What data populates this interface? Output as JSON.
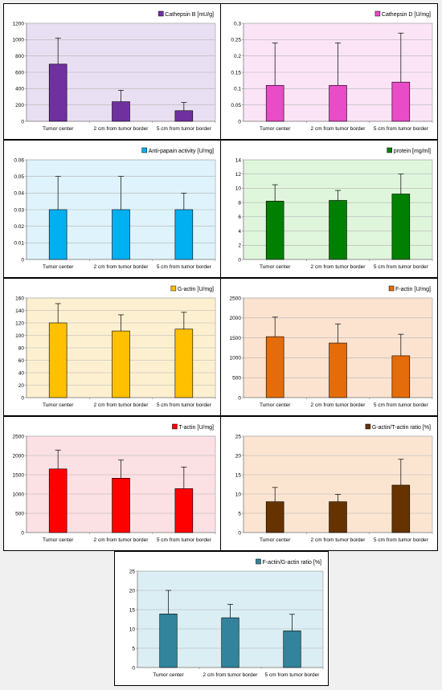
{
  "chart_data": [
    {
      "type": "bar",
      "legend": "Cathepsin B [mU/g]",
      "color": "#7030a0",
      "plot_bg": "#e9dff2",
      "categories": [
        "Tumor center",
        "2 cm from tumor border",
        "5 cm from tumor border"
      ],
      "values": [
        700,
        240,
        130
      ],
      "errors": [
        320,
        140,
        100
      ],
      "ylim": [
        0,
        1200
      ],
      "yticks": [
        "0",
        "200",
        "400",
        "600",
        "800",
        "1000",
        "1200"
      ],
      "grid": true,
      "legend_position": "top-right"
    },
    {
      "type": "bar",
      "legend": "Cathepsin D [U/mg]",
      "color": "#e84cc6",
      "plot_bg": "#fbe4f6",
      "categories": [
        "Tumor center",
        "2 cm from tumor border",
        "5 cm from tumor border"
      ],
      "values": [
        0.11,
        0.11,
        0.12
      ],
      "errors": [
        0.13,
        0.13,
        0.15
      ],
      "ylim": [
        0,
        0.3
      ],
      "yticks": [
        "0",
        "0.05",
        "0.1",
        "0.15",
        "0.2",
        "0.25",
        "0.3"
      ],
      "grid": true,
      "legend_position": "top-right"
    },
    {
      "type": "bar",
      "legend": "Anti-papain activity [U/mg]",
      "color": "#00b0f0",
      "plot_bg": "#def3fb",
      "categories": [
        "Tumor center",
        "2 cm from tumor border",
        "5 cm from tumor border"
      ],
      "values": [
        0.03,
        0.03,
        0.03
      ],
      "errors": [
        0.02,
        0.02,
        0.01
      ],
      "ylim": [
        0,
        0.06
      ],
      "yticks": [
        "0",
        "0.01",
        "0.02",
        "0.03",
        "0.04",
        "0.05",
        "0.06"
      ],
      "grid": true,
      "legend_position": "top-right"
    },
    {
      "type": "bar",
      "legend": "protein [mg/ml]",
      "color": "#008000",
      "plot_bg": "#dff6dc",
      "categories": [
        "Tumor center",
        "2 cm from tumor border",
        "5 cm from tumor border"
      ],
      "values": [
        8.2,
        8.3,
        9.2
      ],
      "errors": [
        2.3,
        1.4,
        2.8
      ],
      "ylim": [
        0,
        14
      ],
      "yticks": [
        "0",
        "2",
        "4",
        "6",
        "8",
        "10",
        "12",
        "14"
      ],
      "grid": true,
      "legend_position": "top-right"
    },
    {
      "type": "bar",
      "legend": "G-actin [U/mg]",
      "color": "#ffc000",
      "plot_bg": "#fdf0d0",
      "categories": [
        "Tumor center",
        "2 cm from tumor border",
        "5 cm from tumor border"
      ],
      "values": [
        120,
        107,
        110
      ],
      "errors": [
        31,
        26,
        27
      ],
      "ylim": [
        0,
        160
      ],
      "yticks": [
        "0",
        "20",
        "40",
        "60",
        "80",
        "100",
        "120",
        "140",
        "160"
      ],
      "grid": true,
      "legend_position": "top-right"
    },
    {
      "type": "bar",
      "legend": "F-actin [U/mg]",
      "color": "#e46c0a",
      "plot_bg": "#fce3cf",
      "categories": [
        "Tumor center",
        "2 cm from tumor border",
        "5 cm from tumor border"
      ],
      "values": [
        1530,
        1370,
        1050
      ],
      "errors": [
        490,
        480,
        540
      ],
      "ylim": [
        0,
        2500
      ],
      "yticks": [
        "0",
        "500",
        "1000",
        "1500",
        "2000",
        "2500"
      ],
      "grid": true,
      "legend_position": "top-right"
    },
    {
      "type": "bar",
      "legend": "T-actin [U/mg]",
      "color": "#ff0000",
      "plot_bg": "#fbe0e4",
      "categories": [
        "Tumor center",
        "2 cm from tumor border",
        "5 cm from tumor border"
      ],
      "values": [
        1650,
        1410,
        1140
      ],
      "errors": [
        490,
        470,
        560
      ],
      "ylim": [
        0,
        2500
      ],
      "yticks": [
        "0",
        "500",
        "1000",
        "1500",
        "2000",
        "2500"
      ],
      "grid": true,
      "legend_position": "top-right"
    },
    {
      "type": "bar",
      "legend": "G-actin/T-actin ratio [%]",
      "color": "#663300",
      "plot_bg": "#fbe5d1",
      "categories": [
        "Tumor center",
        "2 cm from tumor border",
        "5 cm from tumor border"
      ],
      "values": [
        8,
        8,
        12.3
      ],
      "errors": [
        3.7,
        1.9,
        6.7
      ],
      "ylim": [
        0,
        25
      ],
      "yticks": [
        "0",
        "5",
        "10",
        "15",
        "20",
        "25"
      ],
      "grid": true,
      "legend_position": "top-right"
    },
    {
      "type": "bar",
      "legend": "F-actin/G-actin ratio [%]",
      "color": "#31849b",
      "plot_bg": "#dbeef3",
      "categories": [
        "Tumor center",
        "2 cm from tumor border",
        "5 cm from tumor border"
      ],
      "values": [
        13.9,
        12.9,
        9.5
      ],
      "errors": [
        6.1,
        3.5,
        4.3
      ],
      "ylim": [
        0,
        25
      ],
      "yticks": [
        "0",
        "5",
        "10",
        "15",
        "20",
        "25"
      ],
      "grid": true,
      "legend_position": "top-right"
    }
  ]
}
